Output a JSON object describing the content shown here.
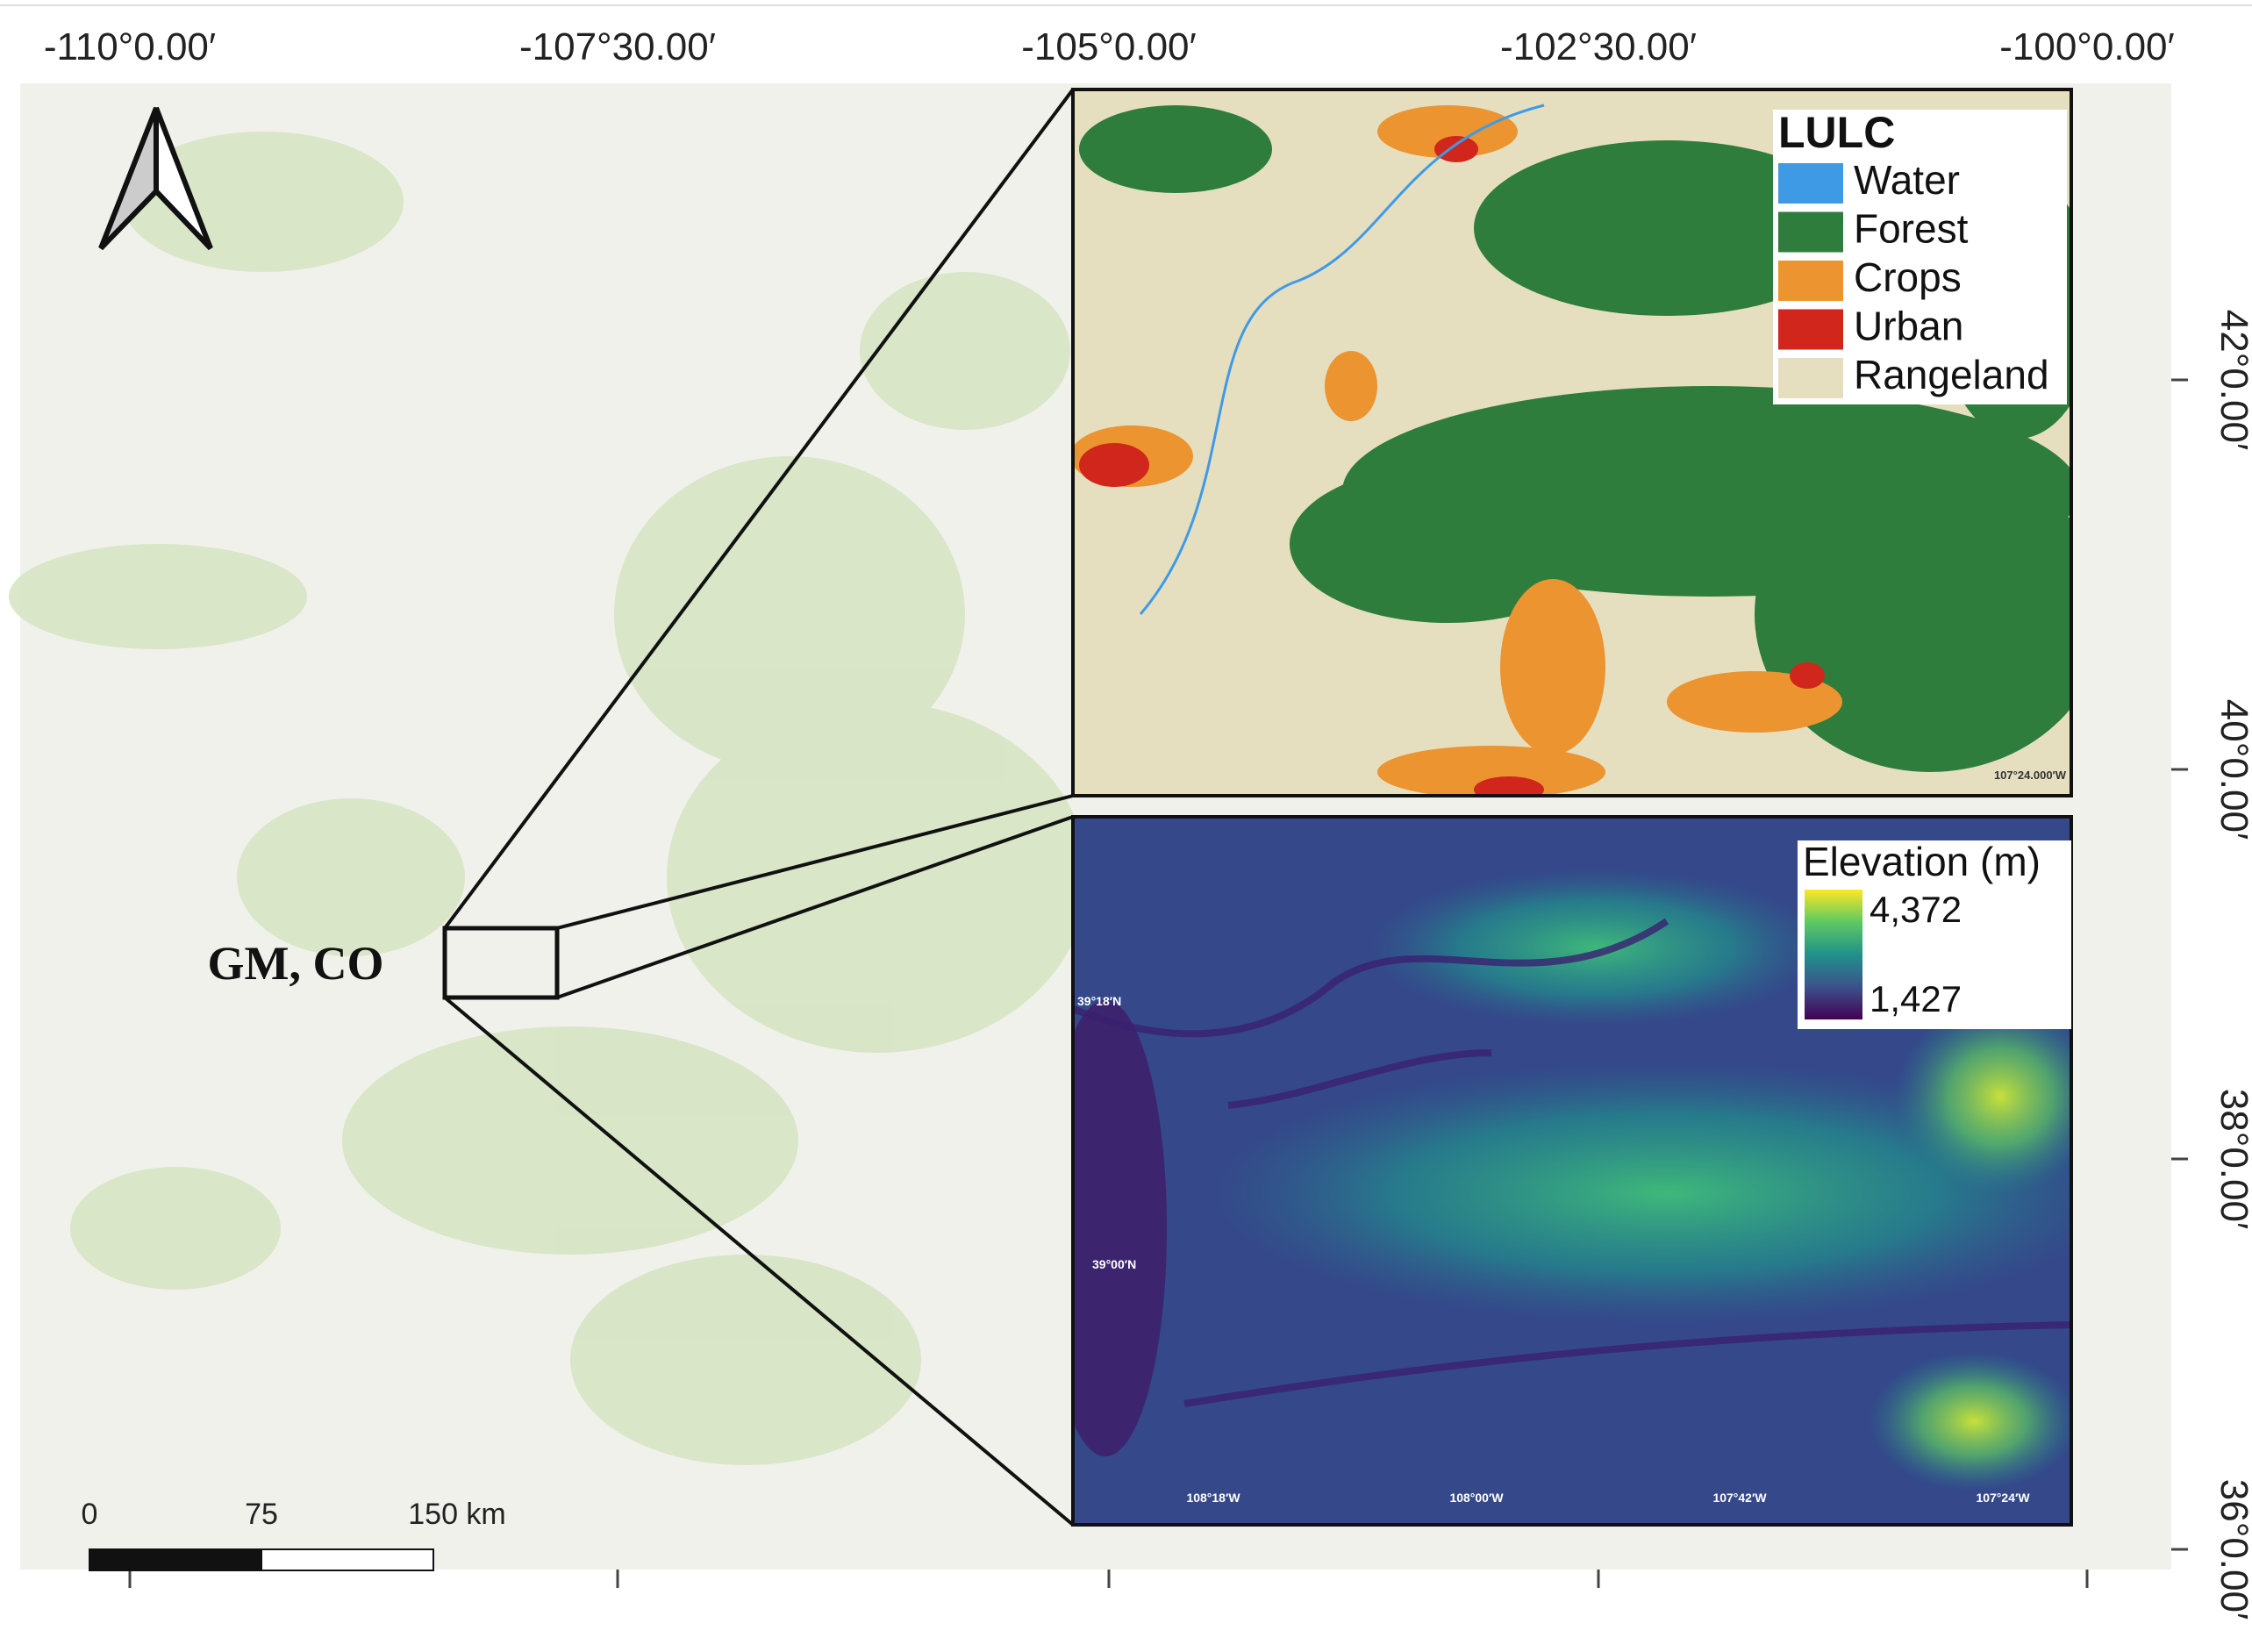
{
  "axes": {
    "top_ticks": [
      "-110°0.00′",
      "-107°30.00′",
      "-105°0.00′",
      "-102°30.00′",
      "-100°0.00′"
    ],
    "right_ticks": [
      "42°0.00′",
      "40°0.00′",
      "38°0.00′",
      "36°0.00′"
    ]
  },
  "place_label": "GM, CO",
  "scale_bar": {
    "labels": [
      "0",
      "75",
      "150 km"
    ]
  },
  "lulc": {
    "title": "LULC",
    "items": [
      {
        "label": "Water",
        "color": "#3f9ae6"
      },
      {
        "label": "Forest",
        "color": "#2f7d3c"
      },
      {
        "label": "Crops",
        "color": "#ec9430"
      },
      {
        "label": "Urban",
        "color": "#d0261c"
      },
      {
        "label": "Rangeland",
        "color": "#e5dfc0"
      }
    ],
    "corner_label": "107°24.000′W"
  },
  "elevation": {
    "title": "Elevation (m)",
    "max_label": "4,372",
    "min_label": "1,427",
    "lat_labels": [
      "39°18′N",
      "39°00′N"
    ],
    "lon_labels": [
      "108°18′W",
      "108°00′W",
      "107°42′W",
      "107°24′W"
    ]
  }
}
